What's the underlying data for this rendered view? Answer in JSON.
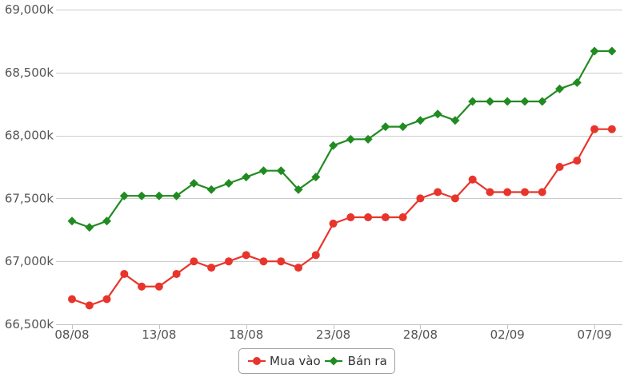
{
  "chart_data": {
    "type": "line",
    "grid": "horizontal",
    "legend": "bottom-center",
    "x": [
      "08/08",
      "09/08",
      "10/08",
      "11/08",
      "12/08",
      "13/08",
      "14/08",
      "15/08",
      "16/08",
      "17/08",
      "18/08",
      "19/08",
      "20/08",
      "21/08",
      "22/08",
      "23/08",
      "24/08",
      "25/08",
      "26/08",
      "27/08",
      "28/08",
      "29/08",
      "30/08",
      "31/08",
      "01/09",
      "02/09",
      "03/09",
      "04/09",
      "05/09",
      "06/09",
      "07/09",
      "08/09"
    ],
    "x_ticks": [
      "08/08",
      "13/08",
      "18/08",
      "23/08",
      "28/08",
      "02/09",
      "07/09"
    ],
    "ylim": [
      66500,
      69000
    ],
    "y_ticks": [
      {
        "value": 66500,
        "label": "66,500k"
      },
      {
        "value": 67000,
        "label": "67,000k"
      },
      {
        "value": 67500,
        "label": "67,500k"
      },
      {
        "value": 68000,
        "label": "68,000k"
      },
      {
        "value": 68500,
        "label": "68,500k"
      },
      {
        "value": 69000,
        "label": "69,000k"
      }
    ],
    "series": [
      {
        "name": "Mua vào",
        "color": "#e8352b",
        "marker": "circle",
        "values": [
          66700,
          66650,
          66700,
          66900,
          66800,
          66800,
          66900,
          67000,
          66950,
          67000,
          67050,
          67000,
          67000,
          66950,
          67050,
          67300,
          67350,
          67350,
          67350,
          67350,
          67500,
          67550,
          67500,
          67650,
          67550,
          67550,
          67550,
          67550,
          67750,
          67800,
          68050,
          68050
        ]
      },
      {
        "name": "Bán ra",
        "color": "#218b21",
        "marker": "diamond",
        "values": [
          67320,
          67270,
          67320,
          67520,
          67520,
          67520,
          67520,
          67620,
          67570,
          67620,
          67670,
          67720,
          67720,
          67570,
          67670,
          67920,
          67970,
          67970,
          68070,
          68070,
          68120,
          68170,
          68120,
          68270,
          68270,
          68270,
          68270,
          68270,
          68370,
          68420,
          68670,
          68670
        ]
      }
    ]
  }
}
